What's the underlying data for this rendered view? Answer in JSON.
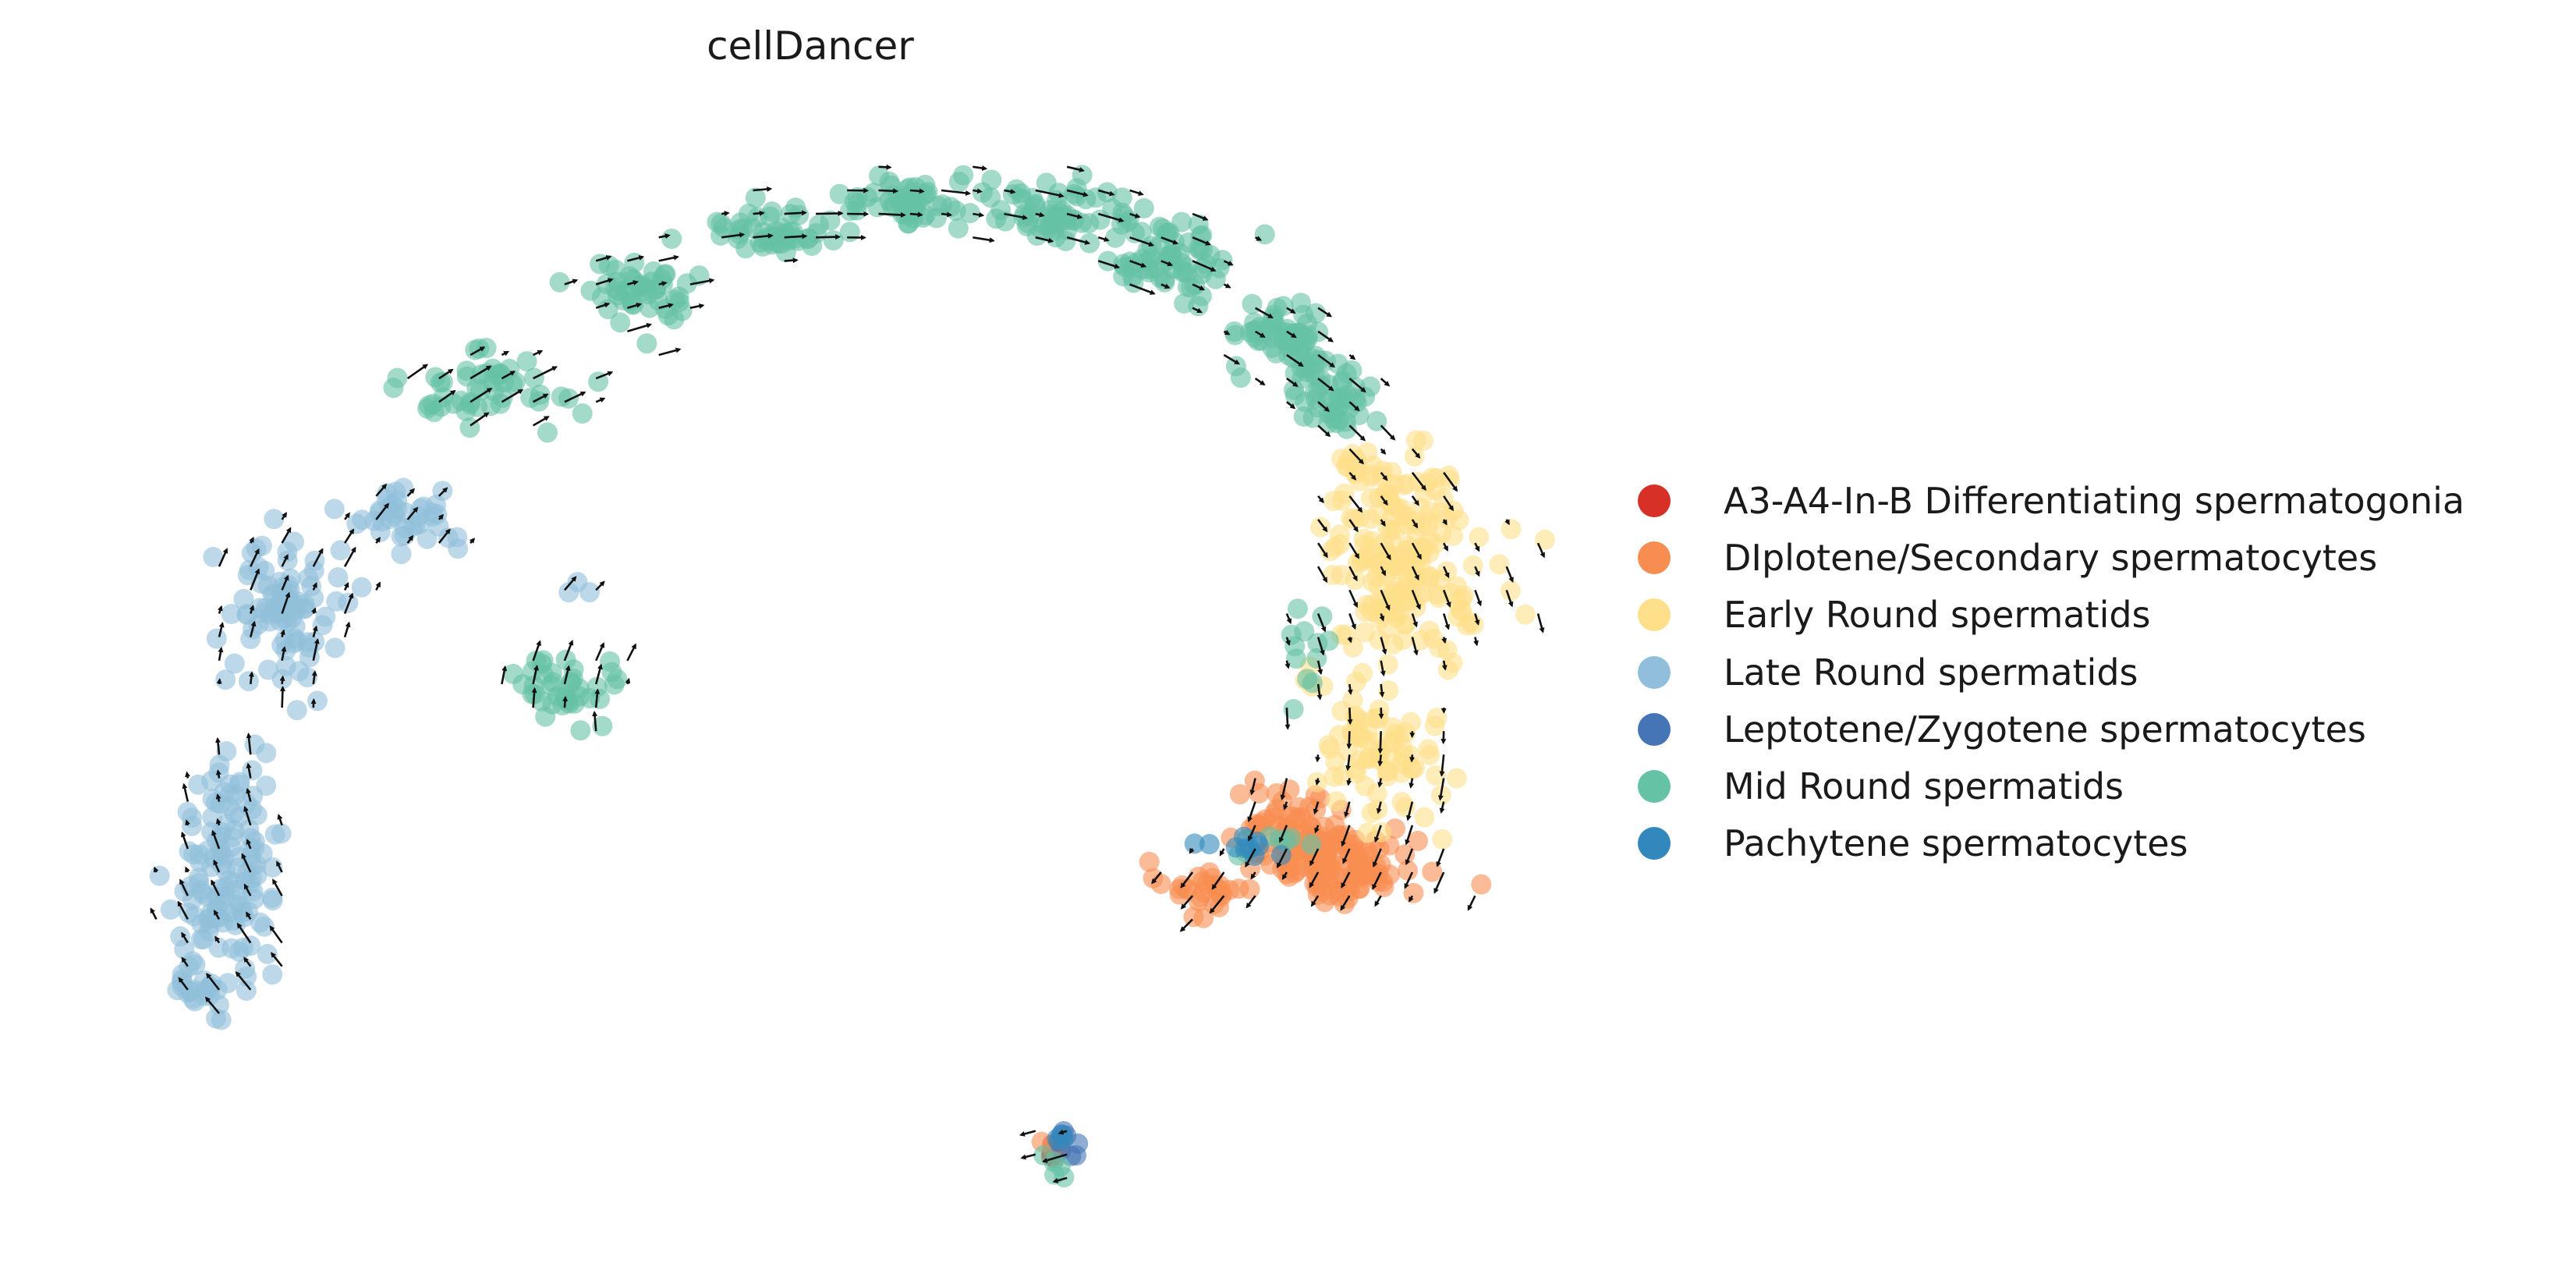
{
  "chart_data": {
    "type": "scatter",
    "title": "cellDancer",
    "xlabel": "",
    "ylabel": "",
    "axes_visible": false,
    "grid": false,
    "legend_position": "right",
    "overlay": "velocity arrows (quiver field on grid)",
    "xlim": [
      0,
      100
    ],
    "ylim": [
      0,
      100
    ],
    "series": [
      {
        "name": "A3-A4-In-B Differentiating spermatogonia",
        "color": "#d73027",
        "clusters": [
          [
            67.6,
            4.7,
            1.0,
            1.2,
            5
          ]
        ]
      },
      {
        "name": "DIplotene/Secondary spermatocytes",
        "color": "#f88d52",
        "clusters": [
          [
            87.4,
            31.5,
            4.0,
            3.0,
            120
          ],
          [
            83.5,
            35.0,
            3.0,
            3.5,
            60
          ],
          [
            77.5,
            29.0,
            3.0,
            1.5,
            30
          ],
          [
            67.6,
            4.8,
            0.9,
            1.0,
            4
          ]
        ]
      },
      {
        "name": "Early Round spermatids",
        "color": "#fee08b",
        "clusters": [
          [
            91.8,
            59.5,
            4.5,
            8.0,
            180
          ],
          [
            90.0,
            42.0,
            3.5,
            6.0,
            80
          ],
          [
            88.5,
            68.5,
            2.5,
            2.5,
            20
          ]
        ]
      },
      {
        "name": "Late Round spermatids",
        "color": "#91bfdb",
        "clusters": [
          [
            9.5,
            30.5,
            2.8,
            8.5,
            130
          ],
          [
            13.5,
            55.0,
            3.5,
            6.0,
            90
          ],
          [
            21.0,
            64.5,
            3.5,
            2.5,
            40
          ],
          [
            7.5,
            20.0,
            2.0,
            2.5,
            25
          ],
          [
            33.5,
            58.0,
            2.0,
            1.5,
            3
          ]
        ]
      },
      {
        "name": "Leptotene/Zygotene spermatocytes",
        "color": "#4575b4",
        "clusters": [
          [
            68.2,
            5.8,
            1.0,
            1.6,
            8
          ]
        ]
      },
      {
        "name": "Mid Round spermatids",
        "color": "#66c2a5",
        "clusters": [
          [
            75.5,
            88.0,
            3.5,
            2.8,
            70
          ],
          [
            83.5,
            81.0,
            3.0,
            3.0,
            60
          ],
          [
            87.0,
            75.0,
            2.5,
            3.0,
            50
          ],
          [
            67.5,
            92.5,
            3.5,
            2.2,
            60
          ],
          [
            57.5,
            93.5,
            4.0,
            2.0,
            60
          ],
          [
            47.5,
            91.0,
            4.0,
            2.2,
            50
          ],
          [
            38.5,
            85.0,
            4.0,
            2.8,
            50
          ],
          [
            28.0,
            76.0,
            4.5,
            3.2,
            50
          ],
          [
            33.5,
            48.0,
            2.8,
            3.0,
            40
          ],
          [
            85.0,
            52.0,
            2.0,
            4.0,
            12
          ],
          [
            83.0,
            33.0,
            3.0,
            1.2,
            8
          ],
          [
            67.3,
            3.0,
            0.8,
            1.0,
            5
          ]
        ]
      },
      {
        "name": "Pachytene spermatocytes",
        "color": "#3288bd",
        "clusters": [
          [
            80.5,
            33.2,
            2.5,
            0.9,
            10
          ],
          [
            68.0,
            6.2,
            0.7,
            0.8,
            3
          ]
        ]
      }
    ]
  }
}
